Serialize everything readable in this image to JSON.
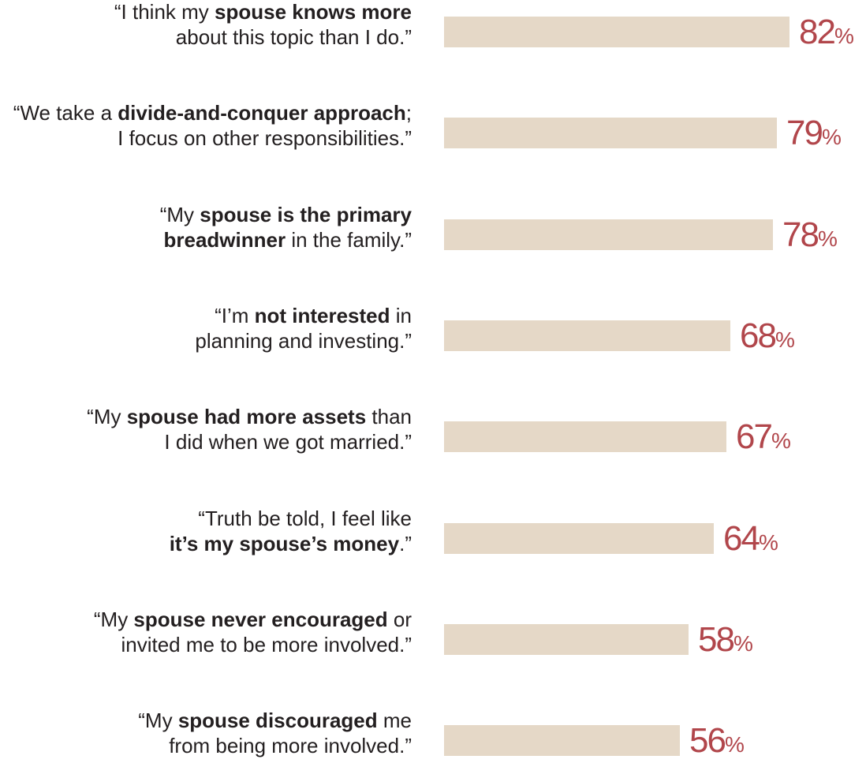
{
  "colors": {
    "bar": "#e5d8c7",
    "value_text": "#b1464b",
    "label_text": "#231f20"
  },
  "chart_data": {
    "type": "bar",
    "orientation": "horizontal",
    "title": "",
    "xlabel": "",
    "ylabel": "",
    "xlim": [
      0,
      100
    ],
    "grid": false,
    "legend": "none",
    "categories": [
      "“I think my spouse knows more about this topic than I do.”",
      "“We take a divide-and-conquer approach; I focus on other responsibilities.”",
      "“My spouse is the primary breadwinner in the family.”",
      "“I’m not interested in planning and investing.”",
      "“My spouse had more assets than I did when we got married.”",
      "“Truth be told, I feel like it’s my spouse’s money.”",
      "“My spouse never encouraged or invited me to be more involved.”",
      "“My spouse discouraged me from being more involved.”"
    ],
    "values": [
      82,
      79,
      78,
      68,
      67,
      64,
      58,
      56
    ],
    "value_suffix": "%",
    "label_parts": [
      [
        [
          {
            "t": "“I think my ",
            "b": false
          },
          {
            "t": "spouse knows more",
            "b": true
          }
        ],
        [
          {
            "t": "about this topic than I do.”",
            "b": false
          }
        ]
      ],
      [
        [
          {
            "t": "“We take a ",
            "b": false
          },
          {
            "t": "divide-and-conquer approach",
            "b": true
          },
          {
            "t": ";",
            "b": false
          }
        ],
        [
          {
            "t": "I focus on other responsibilities.”",
            "b": false
          }
        ]
      ],
      [
        [
          {
            "t": "“My ",
            "b": false
          },
          {
            "t": "spouse is the primary",
            "b": true
          }
        ],
        [
          {
            "t": "breadwinner",
            "b": true
          },
          {
            "t": " in the family.”",
            "b": false
          }
        ]
      ],
      [
        [
          {
            "t": "“I’m ",
            "b": false
          },
          {
            "t": "not interested",
            "b": true
          },
          {
            "t": " in",
            "b": false
          }
        ],
        [
          {
            "t": "planning and investing.”",
            "b": false
          }
        ]
      ],
      [
        [
          {
            "t": "“My ",
            "b": false
          },
          {
            "t": "spouse had more assets",
            "b": true
          },
          {
            "t": " than",
            "b": false
          }
        ],
        [
          {
            "t": "I did when we got married.”",
            "b": false
          }
        ]
      ],
      [
        [
          {
            "t": "“Truth be told, I feel like",
            "b": false
          }
        ],
        [
          {
            "t": "it’s my spouse’s money",
            "b": true
          },
          {
            "t": ".”",
            "b": false
          }
        ]
      ],
      [
        [
          {
            "t": "“My ",
            "b": false
          },
          {
            "t": "spouse never encouraged",
            "b": true
          },
          {
            "t": " or",
            "b": false
          }
        ],
        [
          {
            "t": "invited me to be more involved.”",
            "b": false
          }
        ]
      ],
      [
        [
          {
            "t": "“My ",
            "b": false
          },
          {
            "t": "spouse discouraged",
            "b": true
          },
          {
            "t": " me",
            "b": false
          }
        ],
        [
          {
            "t": "from being more involved.”",
            "b": false
          }
        ]
      ]
    ]
  }
}
